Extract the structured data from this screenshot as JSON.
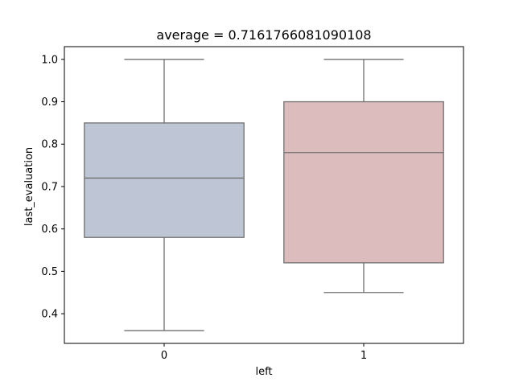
{
  "chart_data": {
    "type": "box",
    "title": "average = 0.7161766081090108",
    "xlabel": "left",
    "ylabel": "last_evaluation",
    "categories": [
      "0",
      "1"
    ],
    "ylim": [
      0.33,
      1.03
    ],
    "yticks": [
      0.4,
      0.5,
      0.6,
      0.7,
      0.8,
      0.9,
      1.0
    ],
    "ytick_labels": [
      "0.4",
      "0.5",
      "0.6",
      "0.7",
      "0.8",
      "0.9",
      "1.0"
    ],
    "boxes": [
      {
        "category": "0",
        "whisker_low": 0.36,
        "q1": 0.58,
        "median": 0.72,
        "q3": 0.85,
        "whisker_high": 1.0,
        "color": "#bec5d4"
      },
      {
        "category": "1",
        "whisker_low": 0.45,
        "q1": 0.52,
        "median": 0.78,
        "q3": 0.9,
        "whisker_high": 1.0,
        "color": "#dcbcbc"
      }
    ],
    "line_color": "#707070",
    "grid": false
  }
}
